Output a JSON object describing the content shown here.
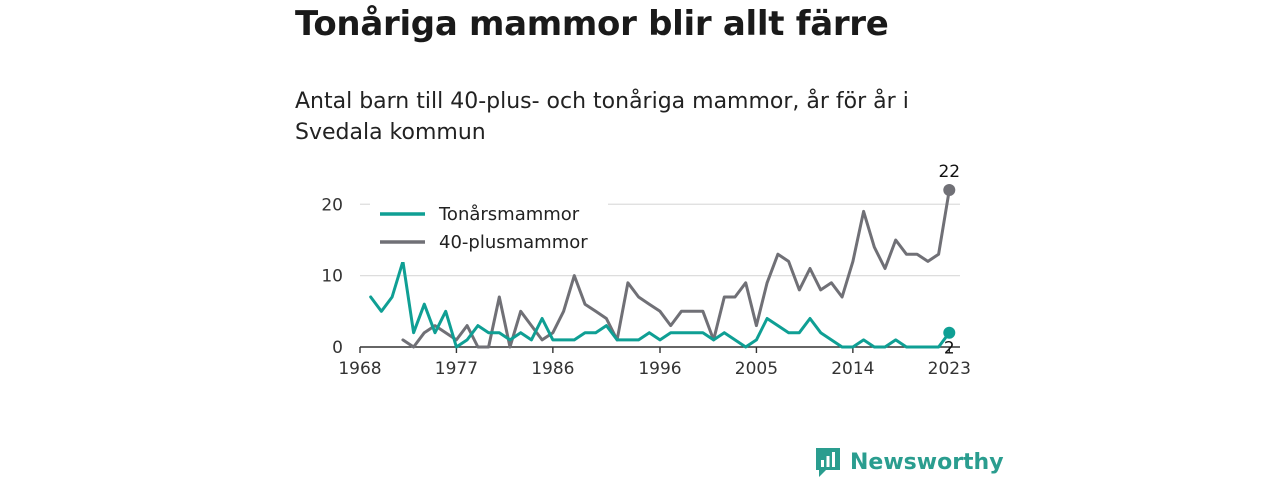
{
  "title": "Tonåriga mammor blir allt färre",
  "subtitle": "Antal barn till 40-plus- och tonåriga mammor, år för år i Svedala kommun",
  "brand": {
    "name": "Newsworthy",
    "icon": "newsworthy-logo-icon",
    "color": "#2a9d8f"
  },
  "chart_data": {
    "type": "line",
    "title": "Tonåriga mammor blir allt färre",
    "subtitle": "Antal barn till 40-plus- och tonåriga mammor, år för år i Svedala kommun",
    "xlabel": "",
    "ylabel": "",
    "x_ticks": [
      1968,
      1977,
      1986,
      1996,
      2005,
      2014,
      2023
    ],
    "y_ticks": [
      0,
      10,
      20
    ],
    "xlim": [
      1968,
      2024
    ],
    "ylim": [
      0,
      22
    ],
    "grid": true,
    "legend_position": "top-left",
    "series": [
      {
        "name": "Tonårsmammor",
        "color": "#0f9f94",
        "end_label": "2",
        "x": [
          1969,
          1970,
          1971,
          1972,
          1973,
          1974,
          1975,
          1976,
          1977,
          1978,
          1979,
          1980,
          1981,
          1982,
          1983,
          1984,
          1985,
          1986,
          1987,
          1988,
          1989,
          1990,
          1991,
          1992,
          1993,
          1994,
          1995,
          1996,
          1997,
          1998,
          1999,
          2000,
          2001,
          2002,
          2003,
          2004,
          2005,
          2006,
          2007,
          2008,
          2009,
          2010,
          2011,
          2012,
          2013,
          2014,
          2015,
          2016,
          2017,
          2018,
          2019,
          2020,
          2021,
          2022,
          2023
        ],
        "values": [
          7,
          5,
          7,
          12,
          2,
          6,
          2,
          5,
          0,
          1,
          3,
          2,
          2,
          1,
          2,
          1,
          4,
          1,
          1,
          1,
          2,
          2,
          3,
          1,
          1,
          1,
          2,
          1,
          2,
          2,
          2,
          2,
          1,
          2,
          1,
          0,
          1,
          4,
          3,
          2,
          2,
          4,
          2,
          1,
          0,
          0,
          1,
          0,
          0,
          1,
          0,
          0,
          0,
          0,
          2
        ]
      },
      {
        "name": "40-plusmammor",
        "color": "#707076",
        "end_label": "22",
        "x": [
          1972,
          1973,
          1974,
          1975,
          1976,
          1977,
          1978,
          1979,
          1980,
          1981,
          1982,
          1983,
          1984,
          1985,
          1986,
          1987,
          1988,
          1989,
          1990,
          1991,
          1992,
          1993,
          1994,
          1995,
          1996,
          1997,
          1998,
          1999,
          2000,
          2001,
          2002,
          2003,
          2004,
          2005,
          2006,
          2007,
          2008,
          2009,
          2010,
          2011,
          2012,
          2013,
          2014,
          2015,
          2016,
          2017,
          2018,
          2019,
          2020,
          2021,
          2022,
          2023
        ],
        "values": [
          1,
          0,
          2,
          3,
          2,
          1,
          3,
          0,
          0,
          7,
          0,
          5,
          3,
          1,
          2,
          5,
          10,
          6,
          5,
          4,
          1,
          9,
          7,
          6,
          5,
          3,
          5,
          5,
          5,
          1,
          7,
          7,
          9,
          3,
          9,
          13,
          12,
          8,
          11,
          8,
          9,
          7,
          12,
          19,
          14,
          11,
          15,
          13,
          13,
          12,
          13,
          22
        ]
      }
    ]
  }
}
